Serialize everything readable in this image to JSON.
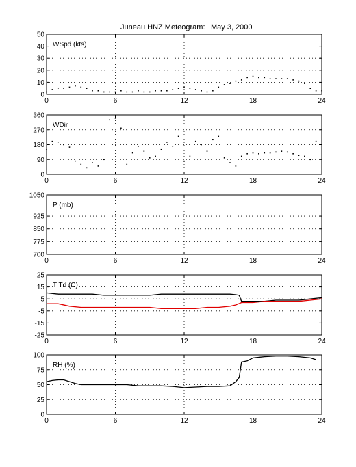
{
  "title": "Juneau HNZ Meteogram:",
  "date": "May  3, 2000",
  "chart_data": [
    {
      "type": "scatter",
      "label": "WSpd (kts)",
      "xlim": [
        0,
        24
      ],
      "ylim": [
        0,
        50
      ],
      "xticks": [
        "0",
        "6",
        "12",
        "18",
        "24"
      ],
      "yticks": [
        "0",
        "10",
        "20",
        "30",
        "40",
        "50"
      ],
      "grid": true,
      "series": [
        {
          "color": "#000000",
          "points": [
            [
              0,
              2
            ],
            [
              0.5,
              4
            ],
            [
              1,
              5
            ],
            [
              1.5,
              5
            ],
            [
              2,
              6
            ],
            [
              2.5,
              7
            ],
            [
              3,
              6
            ],
            [
              3.5,
              5
            ],
            [
              4,
              3
            ],
            [
              4.5,
              3
            ],
            [
              5,
              2
            ],
            [
              5.5,
              2
            ],
            [
              6,
              2
            ],
            [
              6.5,
              3
            ],
            [
              7,
              2
            ],
            [
              7.5,
              2
            ],
            [
              8,
              3
            ],
            [
              8.5,
              2
            ],
            [
              9,
              2
            ],
            [
              9.5,
              3
            ],
            [
              10,
              3
            ],
            [
              10.5,
              3
            ],
            [
              11,
              4
            ],
            [
              11.5,
              5
            ],
            [
              12,
              6
            ],
            [
              12.5,
              5
            ],
            [
              13,
              4
            ],
            [
              13.5,
              3
            ],
            [
              14,
              2
            ],
            [
              14.5,
              3
            ],
            [
              15,
              6
            ],
            [
              15.5,
              8
            ],
            [
              16,
              9
            ],
            [
              16.5,
              11
            ],
            [
              17,
              12
            ],
            [
              17.5,
              14
            ],
            [
              18,
              15
            ],
            [
              18.5,
              14
            ],
            [
              19,
              14
            ],
            [
              19.5,
              13
            ],
            [
              20,
              13
            ],
            [
              20.5,
              13
            ],
            [
              21,
              13
            ],
            [
              21.5,
              12
            ],
            [
              22,
              11
            ],
            [
              22.5,
              9
            ],
            [
              23,
              5
            ],
            [
              23.5,
              3
            ],
            [
              24,
              3
            ]
          ]
        }
      ]
    },
    {
      "type": "scatter",
      "label": "WDir",
      "xlim": [
        0,
        24
      ],
      "ylim": [
        0,
        360
      ],
      "xticks": [
        "0",
        "6",
        "12",
        "18",
        "24"
      ],
      "yticks": [
        "0",
        "90",
        "180",
        "270",
        "360"
      ],
      "grid": true,
      "series": [
        {
          "color": "#000000",
          "points": [
            [
              0,
              150
            ],
            [
              0.5,
              200
            ],
            [
              1,
              195
            ],
            [
              1.5,
              180
            ],
            [
              2,
              165
            ],
            [
              2.5,
              80
            ],
            [
              3,
              60
            ],
            [
              3.5,
              40
            ],
            [
              4,
              70
            ],
            [
              4.5,
              50
            ],
            [
              5,
              90
            ],
            [
              5.5,
              330
            ],
            [
              6,
              340
            ],
            [
              6.5,
              280
            ],
            [
              7,
              60
            ],
            [
              7.5,
              130
            ],
            [
              8,
              170
            ],
            [
              8.5,
              140
            ],
            [
              9,
              100
            ],
            [
              9.5,
              110
            ],
            [
              10,
              150
            ],
            [
              10.5,
              195
            ],
            [
              11,
              170
            ],
            [
              11.5,
              230
            ],
            [
              12,
              80
            ],
            [
              12.5,
              110
            ],
            [
              13,
              200
            ],
            [
              13.5,
              180
            ],
            [
              14,
              140
            ],
            [
              14.5,
              210
            ],
            [
              15,
              230
            ],
            [
              15.5,
              100
            ],
            [
              16,
              70
            ],
            [
              16.5,
              50
            ],
            [
              17,
              110
            ],
            [
              17.5,
              125
            ],
            [
              18,
              130
            ],
            [
              18.5,
              125
            ],
            [
              19,
              130
            ],
            [
              19.5,
              130
            ],
            [
              20,
              135
            ],
            [
              20.5,
              140
            ],
            [
              21,
              135
            ],
            [
              21.5,
              125
            ],
            [
              22,
              115
            ],
            [
              22.5,
              110
            ],
            [
              23,
              90
            ],
            [
              23.5,
              200
            ]
          ]
        }
      ]
    },
    {
      "type": "line",
      "label": "P (mb)",
      "xlim": [
        0,
        24
      ],
      "ylim": [
        700,
        1050
      ],
      "xticks": [
        "0",
        "6",
        "12",
        "18",
        "24"
      ],
      "yticks": [
        "700",
        "775",
        "850",
        "925",
        "1050"
      ],
      "grid": true,
      "series": []
    },
    {
      "type": "line",
      "label": "T Td (C)",
      "xlim": [
        0,
        24
      ],
      "ylim": [
        -25,
        25
      ],
      "xticks": [
        "0",
        "6",
        "12",
        "18",
        "24"
      ],
      "yticks": [
        "-25",
        "-15",
        "-5",
        "5",
        "15",
        "25"
      ],
      "grid": true,
      "series": [
        {
          "color": "#000000",
          "points": [
            [
              0,
              10
            ],
            [
              1,
              9
            ],
            [
              2,
              9
            ],
            [
              3,
              9
            ],
            [
              4,
              9
            ],
            [
              5,
              8
            ],
            [
              6,
              8
            ],
            [
              7,
              8
            ],
            [
              8,
              8
            ],
            [
              9,
              8
            ],
            [
              10,
              9
            ],
            [
              11,
              9
            ],
            [
              12,
              9
            ],
            [
              13,
              9
            ],
            [
              14,
              9
            ],
            [
              15,
              9
            ],
            [
              16,
              9
            ],
            [
              16.5,
              8.5
            ],
            [
              16.8,
              8
            ],
            [
              17,
              3
            ],
            [
              18,
              3
            ],
            [
              19,
              3
            ],
            [
              20,
              4
            ],
            [
              21,
              4
            ],
            [
              22,
              4
            ],
            [
              23,
              5
            ],
            [
              24,
              6
            ]
          ]
        },
        {
          "color": "#e00000",
          "points": [
            [
              0,
              1
            ],
            [
              1,
              1
            ],
            [
              2,
              -1
            ],
            [
              3,
              -2
            ],
            [
              4,
              -2
            ],
            [
              5,
              -2
            ],
            [
              6,
              -2
            ],
            [
              7,
              -2
            ],
            [
              8,
              -2
            ],
            [
              9,
              -2
            ],
            [
              10,
              -3
            ],
            [
              11,
              -3
            ],
            [
              12,
              -3
            ],
            [
              13,
              -3
            ],
            [
              14,
              -2
            ],
            [
              15,
              -2
            ],
            [
              16,
              -1
            ],
            [
              16.5,
              0
            ],
            [
              17,
              2
            ],
            [
              18,
              2
            ],
            [
              19,
              3
            ],
            [
              20,
              3
            ],
            [
              21,
              3
            ],
            [
              22,
              3
            ],
            [
              23,
              4
            ],
            [
              24,
              5
            ]
          ]
        }
      ]
    },
    {
      "type": "line",
      "label": "RH (%)",
      "xlim": [
        0,
        24
      ],
      "ylim": [
        0,
        100
      ],
      "xticks": [
        "0",
        "6",
        "12",
        "18",
        "24"
      ],
      "yticks": [
        "0",
        "25",
        "50",
        "75",
        "100"
      ],
      "grid": true,
      "series": [
        {
          "color": "#000000",
          "points": [
            [
              0,
              55
            ],
            [
              0.5,
              57
            ],
            [
              1,
              58
            ],
            [
              1.5,
              58
            ],
            [
              2,
              55
            ],
            [
              2.5,
              52
            ],
            [
              3,
              50
            ],
            [
              4,
              50
            ],
            [
              5,
              50
            ],
            [
              6,
              50
            ],
            [
              7,
              50
            ],
            [
              8,
              48
            ],
            [
              9,
              48
            ],
            [
              10,
              48
            ],
            [
              11,
              47
            ],
            [
              12,
              45
            ],
            [
              13,
              46
            ],
            [
              14,
              47
            ],
            [
              15,
              47
            ],
            [
              16,
              48
            ],
            [
              16.5,
              55
            ],
            [
              16.8,
              62
            ],
            [
              17,
              88
            ],
            [
              17.5,
              90
            ],
            [
              18,
              95
            ],
            [
              19,
              97
            ],
            [
              20,
              98
            ],
            [
              21,
              98
            ],
            [
              22,
              97
            ],
            [
              23,
              95
            ],
            [
              23.5,
              92
            ]
          ]
        }
      ]
    }
  ]
}
